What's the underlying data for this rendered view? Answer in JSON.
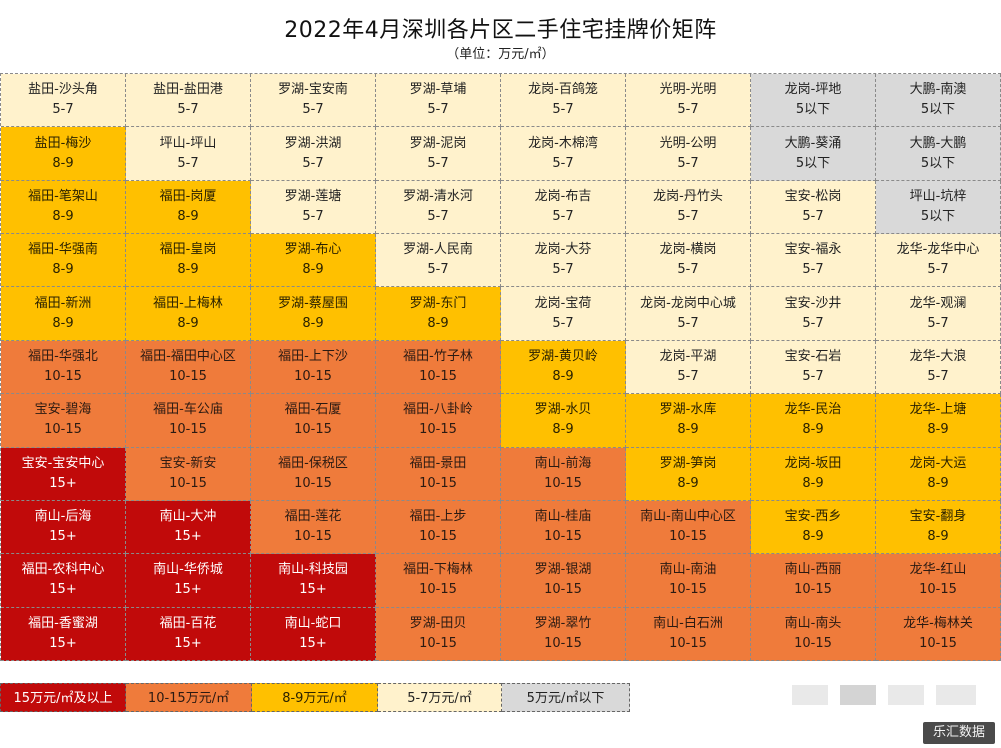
{
  "title": "2022年4月深圳各片区二手住宅挂牌价矩阵",
  "subtitle": "（单位：万元/㎡）",
  "source_badge": "乐汇数据",
  "tier_colors": {
    "15+": "#c10a0a",
    "10-15": "#ef7b3b",
    "8-9": "#ffc000",
    "5-7": "#fff2cc",
    "5以下": "#d9d9d9"
  },
  "legend": [
    {
      "label": "15万元/㎡及以上",
      "tier": "15+"
    },
    {
      "label": "10-15万元/㎡",
      "tier": "10-15"
    },
    {
      "label": "8-9万元/㎡",
      "tier": "8-9"
    },
    {
      "label": "5-7万元/㎡",
      "tier": "5-7"
    },
    {
      "label": "5万元/㎡以下",
      "tier": "5以下"
    }
  ],
  "chart_data": {
    "type": "table",
    "title": "2022年4月深圳各片区二手住宅挂牌价矩阵",
    "unit": "万元/㎡",
    "rows": [
      [
        {
          "name": "盐田-沙头角",
          "price": "5-7"
        },
        {
          "name": "盐田-盐田港",
          "price": "5-7"
        },
        {
          "name": "罗湖-宝安南",
          "price": "5-7"
        },
        {
          "name": "罗湖-草埔",
          "price": "5-7"
        },
        {
          "name": "龙岗-百鸽笼",
          "price": "5-7"
        },
        {
          "name": "光明-光明",
          "price": "5-7"
        },
        {
          "name": "龙岗-坪地",
          "price": "5以下"
        },
        {
          "name": "大鹏-南澳",
          "price": "5以下"
        }
      ],
      [
        {
          "name": "盐田-梅沙",
          "price": "8-9"
        },
        {
          "name": "坪山-坪山",
          "price": "5-7"
        },
        {
          "name": "罗湖-洪湖",
          "price": "5-7"
        },
        {
          "name": "罗湖-泥岗",
          "price": "5-7"
        },
        {
          "name": "龙岗-木棉湾",
          "price": "5-7"
        },
        {
          "name": "光明-公明",
          "price": "5-7"
        },
        {
          "name": "大鹏-葵涌",
          "price": "5以下"
        },
        {
          "name": "大鹏-大鹏",
          "price": "5以下"
        }
      ],
      [
        {
          "name": "福田-笔架山",
          "price": "8-9"
        },
        {
          "name": "福田-岗厦",
          "price": "8-9"
        },
        {
          "name": "罗湖-莲塘",
          "price": "5-7"
        },
        {
          "name": "罗湖-清水河",
          "price": "5-7"
        },
        {
          "name": "龙岗-布吉",
          "price": "5-7"
        },
        {
          "name": "龙岗-丹竹头",
          "price": "5-7"
        },
        {
          "name": "宝安-松岗",
          "price": "5-7"
        },
        {
          "name": "坪山-坑梓",
          "price": "5以下"
        }
      ],
      [
        {
          "name": "福田-华强南",
          "price": "8-9"
        },
        {
          "name": "福田-皇岗",
          "price": "8-9"
        },
        {
          "name": "罗湖-布心",
          "price": "8-9"
        },
        {
          "name": "罗湖-人民南",
          "price": "5-7"
        },
        {
          "name": "龙岗-大芬",
          "price": "5-7"
        },
        {
          "name": "龙岗-横岗",
          "price": "5-7"
        },
        {
          "name": "宝安-福永",
          "price": "5-7"
        },
        {
          "name": "龙华-龙华中心",
          "price": "5-7"
        }
      ],
      [
        {
          "name": "福田-新洲",
          "price": "8-9"
        },
        {
          "name": "福田-上梅林",
          "price": "8-9"
        },
        {
          "name": "罗湖-蔡屋围",
          "price": "8-9"
        },
        {
          "name": "罗湖-东门",
          "price": "8-9"
        },
        {
          "name": "龙岗-宝荷",
          "price": "5-7"
        },
        {
          "name": "龙岗-龙岗中心城",
          "price": "5-7"
        },
        {
          "name": "宝安-沙井",
          "price": "5-7"
        },
        {
          "name": "龙华-观澜",
          "price": "5-7"
        }
      ],
      [
        {
          "name": "福田-华强北",
          "price": "10-15"
        },
        {
          "name": "福田-福田中心区",
          "price": "10-15"
        },
        {
          "name": "福田-上下沙",
          "price": "10-15"
        },
        {
          "name": "福田-竹子林",
          "price": "10-15"
        },
        {
          "name": "罗湖-黄贝岭",
          "price": "8-9"
        },
        {
          "name": "龙岗-平湖",
          "price": "5-7"
        },
        {
          "name": "宝安-石岩",
          "price": "5-7"
        },
        {
          "name": "龙华-大浪",
          "price": "5-7"
        }
      ],
      [
        {
          "name": "宝安-碧海",
          "price": "10-15"
        },
        {
          "name": "福田-车公庙",
          "price": "10-15"
        },
        {
          "name": "福田-石厦",
          "price": "10-15"
        },
        {
          "name": "福田-八卦岭",
          "price": "10-15"
        },
        {
          "name": "罗湖-水贝",
          "price": "8-9"
        },
        {
          "name": "罗湖-水库",
          "price": "8-9"
        },
        {
          "name": "龙华-民治",
          "price": "8-9"
        },
        {
          "name": "龙华-上塘",
          "price": "8-9"
        }
      ],
      [
        {
          "name": "宝安-宝安中心",
          "price": "15+"
        },
        {
          "name": "宝安-新安",
          "price": "10-15"
        },
        {
          "name": "福田-保税区",
          "price": "10-15"
        },
        {
          "name": "福田-景田",
          "price": "10-15"
        },
        {
          "name": "南山-前海",
          "price": "10-15"
        },
        {
          "name": "罗湖-笋岗",
          "price": "8-9"
        },
        {
          "name": "龙岗-坂田",
          "price": "8-9"
        },
        {
          "name": "龙岗-大运",
          "price": "8-9"
        }
      ],
      [
        {
          "name": "南山-后海",
          "price": "15+"
        },
        {
          "name": "南山-大冲",
          "price": "15+"
        },
        {
          "name": "福田-莲花",
          "price": "10-15"
        },
        {
          "name": "福田-上步",
          "price": "10-15"
        },
        {
          "name": "南山-桂庙",
          "price": "10-15"
        },
        {
          "name": "南山-南山中心区",
          "price": "10-15"
        },
        {
          "name": "宝安-西乡",
          "price": "8-9"
        },
        {
          "name": "宝安-翻身",
          "price": "8-9"
        }
      ],
      [
        {
          "name": "福田-农科中心",
          "price": "15+"
        },
        {
          "name": "南山-华侨城",
          "price": "15+"
        },
        {
          "name": "南山-科技园",
          "price": "15+"
        },
        {
          "name": "福田-下梅林",
          "price": "10-15"
        },
        {
          "name": "罗湖-银湖",
          "price": "10-15"
        },
        {
          "name": "南山-南油",
          "price": "10-15"
        },
        {
          "name": "南山-西丽",
          "price": "10-15"
        },
        {
          "name": "龙华-红山",
          "price": "10-15"
        }
      ],
      [
        {
          "name": "福田-香蜜湖",
          "price": "15+"
        },
        {
          "name": "福田-百花",
          "price": "15+"
        },
        {
          "name": "南山-蛇口",
          "price": "15+"
        },
        {
          "name": "罗湖-田贝",
          "price": "10-15"
        },
        {
          "name": "罗湖-翠竹",
          "price": "10-15"
        },
        {
          "name": "南山-白石洲",
          "price": "10-15"
        },
        {
          "name": "南山-南头",
          "price": "10-15"
        },
        {
          "name": "龙华-梅林关",
          "price": "10-15"
        }
      ]
    ]
  }
}
